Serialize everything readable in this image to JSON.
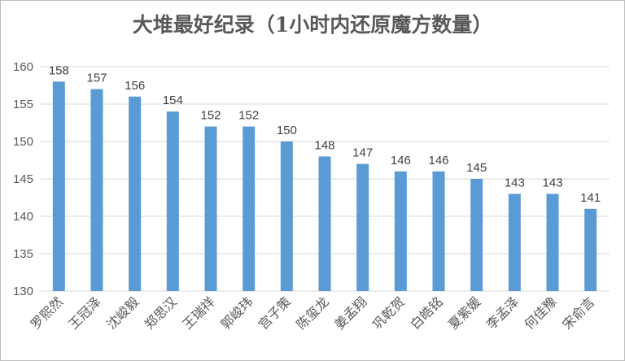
{
  "chart_data": {
    "type": "bar",
    "title": "大堆最好纪录（1小时内还原魔方数量）",
    "xlabel": "",
    "ylabel": "",
    "categories": [
      "罗熙然",
      "王冠泽",
      "沈峻毅",
      "郑思汉",
      "王瑞祥",
      "郭峻玮",
      "宫子策",
      "陈玺龙",
      "姜孟翔",
      "巩乾贺",
      "白皓铭",
      "夏紫媛",
      "李孟泽",
      "何佳豫",
      "宋俞言"
    ],
    "values": [
      158,
      157,
      156,
      154,
      152,
      152,
      150,
      148,
      147,
      146,
      146,
      145,
      143,
      143,
      141
    ],
    "ylim": [
      130,
      160
    ],
    "yticks": [
      130,
      135,
      140,
      145,
      150,
      155,
      160
    ],
    "grid": true,
    "legend": "none",
    "bar_color": "#5b9bd5",
    "grid_color": "#d9d9d9"
  }
}
